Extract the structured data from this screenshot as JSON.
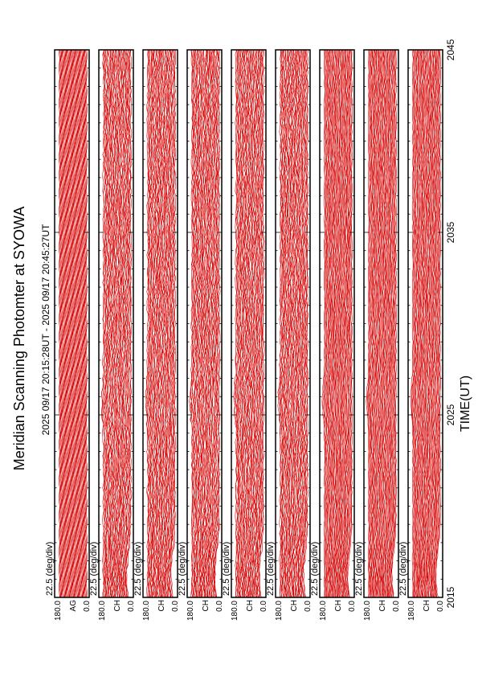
{
  "title": "Meridian Scanning Photomter at SYOWA",
  "time_range": "2025 09/17 20:15:28UT - 2025 09/17 20:45:27UT",
  "x_axis_label": "TIME(UT)",
  "x_tick_labels": [
    "2015",
    "2025",
    "2035",
    "2045"
  ],
  "colors": {
    "trace": "#d40000",
    "frame": "#000000"
  },
  "chart_data": {
    "type": "line",
    "title": "Meridian Scanning Photomter at SYOWA",
    "xlabel": "TIME(UT)",
    "x_ticks": [
      "2015",
      "2025",
      "2035",
      "2045"
    ],
    "panels": [
      {
        "channel": "AG",
        "scale": "22.5 (deg/div)",
        "ylim": [
          0.0,
          180.0
        ],
        "y_ticks": [
          "180.0",
          "0.0"
        ]
      },
      {
        "channel": "CH",
        "scale": "22.5 (deg/div)",
        "ylim": [
          0.0,
          180.0
        ],
        "y_ticks": [
          "180.0",
          "0.0"
        ]
      },
      {
        "channel": "CH",
        "scale": "22.5 (deg/div)",
        "ylim": [
          0.0,
          180.0
        ],
        "y_ticks": [
          "180.0",
          "0.0"
        ]
      },
      {
        "channel": "CH",
        "scale": "22.5 (deg/div)",
        "ylim": [
          0.0,
          180.0
        ],
        "y_ticks": [
          "180.0",
          "0.0"
        ]
      },
      {
        "channel": "CH",
        "scale": "22.5 (deg/div)",
        "ylim": [
          0.0,
          180.0
        ],
        "y_ticks": [
          "180.0",
          "0.0"
        ]
      },
      {
        "channel": "CH",
        "scale": "22.5 (deg/div)",
        "ylim": [
          0.0,
          180.0
        ],
        "y_ticks": [
          "180.0",
          "0.0"
        ]
      },
      {
        "channel": "CH",
        "scale": "22.5 (deg/div)",
        "ylim": [
          0.0,
          180.0
        ],
        "y_ticks": [
          "180.0",
          "0.0"
        ]
      },
      {
        "channel": "CH",
        "scale": "22.5 (deg/div)",
        "ylim": [
          0.0,
          180.0
        ],
        "y_ticks": [
          "180.0",
          "0.0"
        ]
      },
      {
        "channel": "CH",
        "scale": "22.5 (deg/div)",
        "ylim": [
          0.0,
          180.0
        ],
        "y_ticks": [
          "180.0",
          "0.0"
        ]
      }
    ]
  }
}
